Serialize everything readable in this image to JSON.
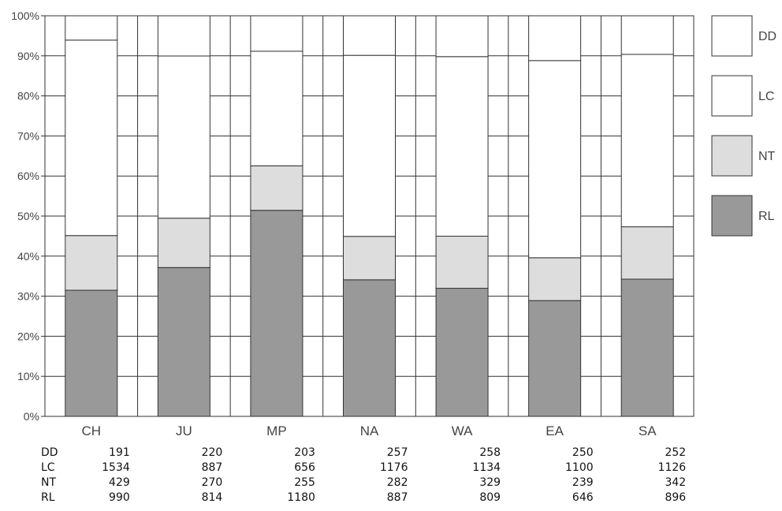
{
  "chart_data": {
    "type": "bar",
    "stacked": true,
    "normalized": true,
    "categories": [
      "CH",
      "JU",
      "MP",
      "NA",
      "WA",
      "EA",
      "SA"
    ],
    "series": [
      {
        "name": "RL",
        "color": "#999999",
        "values": [
          990,
          814,
          1180,
          887,
          809,
          646,
          896
        ]
      },
      {
        "name": "NT",
        "color": "#dddddd",
        "values": [
          429,
          270,
          255,
          282,
          329,
          239,
          342
        ]
      },
      {
        "name": "LC",
        "color": "#ffffff",
        "values": [
          1534,
          887,
          656,
          1176,
          1134,
          1100,
          1126
        ]
      },
      {
        "name": "DD",
        "color": "#ffffff",
        "values": [
          191,
          220,
          203,
          257,
          258,
          250,
          252
        ]
      }
    ],
    "yticks": [
      "0%",
      "10%",
      "20%",
      "30%",
      "40%",
      "50%",
      "60%",
      "70%",
      "80%",
      "90%",
      "100%"
    ],
    "ylim": [
      0,
      100
    ],
    "grid": true,
    "legend_placement": "right",
    "legend_order": [
      "DD",
      "LC",
      "NT",
      "RL"
    ],
    "table_order": [
      "DD",
      "LC",
      "NT",
      "RL"
    ]
  }
}
